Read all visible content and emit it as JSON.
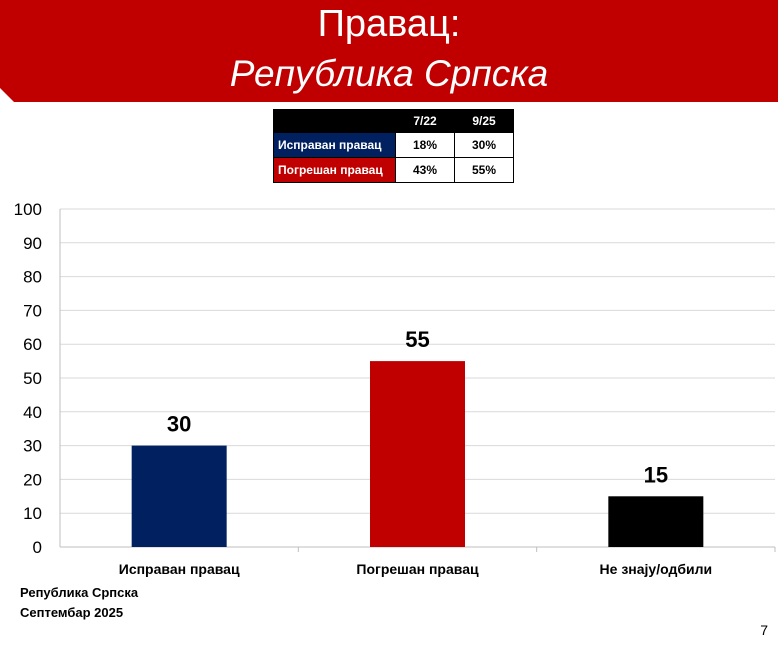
{
  "header": {
    "title": "Правац:",
    "subtitle": "Република Српска"
  },
  "colors": {
    "banner": "#c00000",
    "correct": "#002060",
    "wrong": "#c00000",
    "dontknow": "#000000"
  },
  "comparison_table": {
    "columns": [
      "7/22",
      "9/25"
    ],
    "rows": [
      {
        "label": "Исправан правац",
        "values": [
          "18%",
          "30%"
        ]
      },
      {
        "label": "Погрешан правац",
        "values": [
          "43%",
          "55%"
        ]
      }
    ]
  },
  "chart_data": {
    "type": "bar",
    "categories": [
      "Исправан правац",
      "Погрешан правац",
      "Не знају/одбили"
    ],
    "values": [
      30,
      55,
      15
    ],
    "data_labels": [
      "30",
      "55",
      "15"
    ],
    "ylim": [
      0,
      100
    ],
    "yticks": [
      0,
      10,
      20,
      30,
      40,
      50,
      60,
      70,
      80,
      90,
      100
    ],
    "grid": true,
    "bar_colors": [
      "#002060",
      "#c00000",
      "#000000"
    ]
  },
  "footer": {
    "line1": "Република Српска",
    "line2": "Септембар 2025",
    "page_number": "7"
  }
}
